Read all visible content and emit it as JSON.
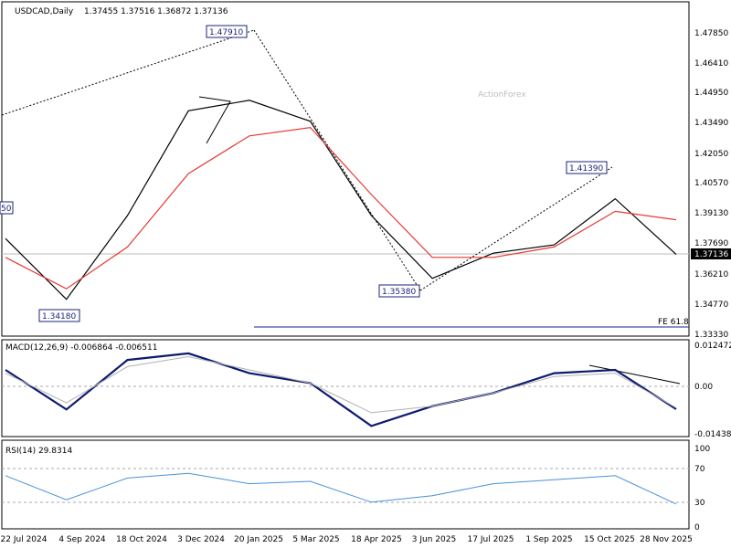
{
  "header": {
    "symbol": "USDCAD,Daily",
    "ohlc": "1.37455 1.37516 1.36872 1.37136"
  },
  "watermark": "ActionForex",
  "price_axis": {
    "ticks": [
      "1.47850",
      "1.46410",
      "1.44950",
      "1.43490",
      "1.42050",
      "1.40570",
      "1.39130",
      "1.37690",
      "1.36210",
      "1.34770",
      "1.33330"
    ],
    "current": "1.37136"
  },
  "annotations": {
    "high": "1.47910",
    "low1": "1.34180",
    "low2": "1.35380",
    "peak2": "1.41390",
    "left_cut": "50",
    "fe": "FE 61.8"
  },
  "macd": {
    "label": "MACD(12,26,9) -0.006864 -0.006511",
    "ticks": [
      "0.012472",
      "0.00",
      "-0.014389"
    ]
  },
  "rsi": {
    "label": "RSI(14) 29.8314",
    "ticks": [
      "100",
      "70",
      "30",
      "0"
    ]
  },
  "time_axis": {
    "labels": [
      "22 Jul 2024",
      "4 Sep 2024",
      "18 Oct 2024",
      "3 Dec 2024",
      "20 Jan 2025",
      "5 Mar 2025",
      "18 Apr 2025",
      "3 Jun 2025",
      "17 Jul 2025",
      "1 Sep 2025",
      "15 Oct 2025",
      "28 Nov 2025"
    ]
  },
  "colors": {
    "price": "#000000",
    "ma": "#e53935",
    "macd": "#0d1b6e",
    "signal": "#b0b0b0",
    "rsi": "#4a90d9",
    "label": "#1a237e"
  },
  "chart_data": [
    {
      "type": "line",
      "name": "price",
      "ylim": [
        1.3333,
        1.4785
      ],
      "x": [
        "22 Jul 2024",
        "4 Sep 2024",
        "18 Oct 2024",
        "3 Dec 2024",
        "20 Jan 2025",
        "5 Mar 2025",
        "18 Apr 2025",
        "3 Jun 2025",
        "17 Jul 2025",
        "1 Sep 2025",
        "15 Oct 2025",
        "28 Nov 2025"
      ],
      "close": [
        1.379,
        1.35,
        1.39,
        1.44,
        1.445,
        1.435,
        1.39,
        1.36,
        1.372,
        1.376,
        1.398,
        1.3714
      ],
      "ma": [
        1.37,
        1.355,
        1.375,
        1.41,
        1.428,
        1.432,
        1.4,
        1.37,
        1.37,
        1.375,
        1.392,
        1.388
      ],
      "annotated_levels": [
        1.4791,
        1.3418,
        1.3538,
        1.4139
      ],
      "fe_level": 1.336
    },
    {
      "type": "line",
      "name": "MACD",
      "ylim": [
        -0.014389,
        0.012472
      ],
      "values": [
        0.005,
        -0.007,
        0.008,
        0.01,
        0.004,
        0.001,
        -0.012,
        -0.006,
        -0.002,
        0.004,
        0.005,
        -0.0069
      ],
      "signal": [
        0.004,
        -0.005,
        0.006,
        0.009,
        0.005,
        0.001,
        -0.008,
        -0.006,
        -0.002,
        0.003,
        0.004,
        -0.0065
      ]
    },
    {
      "type": "line",
      "name": "RSI",
      "ylim": [
        0,
        100
      ],
      "levels": [
        70,
        30
      ],
      "values": [
        65,
        35,
        62,
        68,
        55,
        58,
        32,
        40,
        55,
        60,
        65,
        29.8
      ]
    }
  ]
}
